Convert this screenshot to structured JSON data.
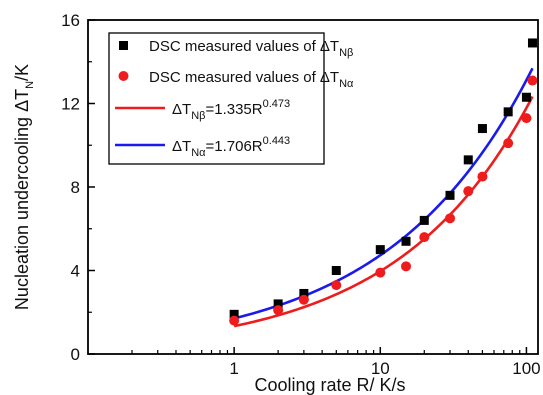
{
  "chart_data": {
    "type": "scatter",
    "x_scale": "log",
    "xlabel": "Cooling rate R/ K/s",
    "ylabel": {
      "main": "Nucleation undercooling ΔT",
      "sub": "N",
      "unit": "/K"
    },
    "xlim": [
      0.1,
      120
    ],
    "ylim": [
      0,
      16
    ],
    "x_ticks": [
      {
        "value": 1,
        "label": "1"
      },
      {
        "value": 10,
        "label": "10"
      },
      {
        "value": 100,
        "label": "100"
      }
    ],
    "y_ticks": [
      {
        "value": 0,
        "label": "0"
      },
      {
        "value": 4,
        "label": "4"
      },
      {
        "value": 8,
        "label": "8"
      },
      {
        "value": 12,
        "label": "12"
      },
      {
        "value": 16,
        "label": "16"
      }
    ],
    "legend_position": "top-left",
    "series": [
      {
        "name": "DSC measured values of ΔT_Nβ",
        "legend": {
          "main": "DSC measured values of ΔT",
          "sub": "Nβ"
        },
        "kind": "points",
        "marker": "square",
        "color": "#000000",
        "x": [
          1,
          2,
          3,
          5,
          10,
          15,
          20,
          30,
          40,
          50,
          75,
          100,
          110
        ],
        "y": [
          1.9,
          2.4,
          2.9,
          4.0,
          5.0,
          5.4,
          6.4,
          7.6,
          9.3,
          10.8,
          11.6,
          12.3,
          14.9
        ]
      },
      {
        "name": "DSC measured values of ΔT_Nα",
        "legend": {
          "main": "DSC measured values of ΔT",
          "sub": "Nα"
        },
        "kind": "points",
        "marker": "circle",
        "color": "#ee1c1c",
        "x": [
          1,
          2,
          3,
          5,
          10,
          15,
          20,
          30,
          40,
          50,
          75,
          100,
          110
        ],
        "y": [
          1.6,
          2.1,
          2.6,
          3.3,
          3.9,
          4.2,
          5.6,
          6.5,
          7.8,
          8.5,
          10.1,
          11.3,
          13.1
        ]
      },
      {
        "name": "ΔT_Nβ=1.335R^0.473",
        "legend": {
          "pre": "ΔT",
          "sub": "Nβ",
          "mid": "=1.335R",
          "sup": "0.473"
        },
        "kind": "fit",
        "coef": 1.335,
        "exponent": 0.473,
        "x_range": [
          1,
          110
        ],
        "color": "#ee1c1c"
      },
      {
        "name": "ΔT_Nα=1.706R^0.443",
        "legend": {
          "pre": "ΔT",
          "sub": "Nα",
          "mid": "=1.706R",
          "sup": "0.443"
        },
        "kind": "fit",
        "coef": 1.706,
        "exponent": 0.443,
        "x_range": [
          1,
          110
        ],
        "color": "#1a1aee"
      }
    ]
  }
}
